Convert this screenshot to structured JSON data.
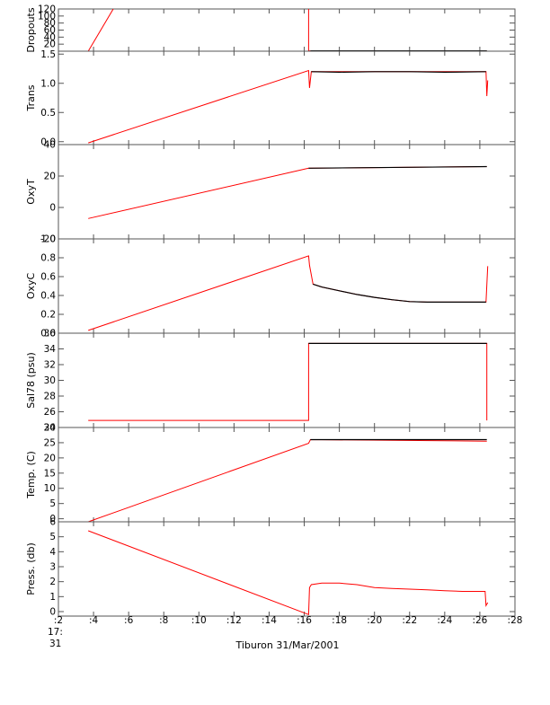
{
  "chart_data": {
    "type": "line",
    "xlabel": "Tiburon 31/Mar/2001",
    "x_axis_note": [
      "17:",
      "31"
    ],
    "x_ticks": [
      2,
      4,
      6,
      8,
      10,
      12,
      14,
      16,
      18,
      20,
      22,
      24,
      26,
      28
    ],
    "x_tick_labels": [
      ":2",
      ":4",
      ":6",
      ":8",
      ":10",
      ":12",
      ":14",
      ":16",
      ":18",
      ":20",
      ":22",
      ":24",
      ":26",
      ":28"
    ],
    "xlim": [
      2,
      28
    ],
    "colors": {
      "raw": "#ff0000",
      "processed": "#000000"
    },
    "panels": [
      {
        "ylabel": "Dropouts",
        "ylim": [
          0,
          120
        ],
        "y_ticks": [
          20,
          40,
          60,
          80,
          100,
          120
        ],
        "y_tick_labels": [
          "20",
          "40",
          "60",
          "80",
          "100",
          "120"
        ],
        "series": [
          {
            "role": "raw",
            "x": [
              3.7,
              5.6
            ],
            "y": [
              0,
              160
            ]
          },
          {
            "role": "raw",
            "x": [
              16.25,
              16.25,
              16.35,
              26.4
            ],
            "y": [
              125,
              1,
              1,
              1
            ]
          },
          {
            "role": "processed",
            "x": [
              16.35,
              26.4
            ],
            "y": [
              1,
              1
            ]
          }
        ]
      },
      {
        "ylabel": "Trans",
        "ylim": [
          -0.05,
          1.55
        ],
        "y_ticks": [
          0.0,
          0.5,
          1.0,
          1.5
        ],
        "y_tick_labels": [
          "0.0",
          "0.5",
          "1.0",
          "1.5"
        ],
        "series": [
          {
            "role": "raw",
            "x": [
              3.7,
              16.25,
              16.3,
              16.4,
              26.35,
              26.4,
              26.45
            ],
            "y": [
              -0.02,
              1.22,
              0.92,
              1.2,
              1.2,
              0.78,
              1.05
            ]
          },
          {
            "role": "processed",
            "x": [
              16.4,
              18,
              20,
              22,
              24,
              26.35
            ],
            "y": [
              1.2,
              1.19,
              1.2,
              1.2,
              1.19,
              1.2
            ]
          }
        ]
      },
      {
        "ylabel": "OxyT",
        "ylim": [
          -20,
          40
        ],
        "y_ticks": [
          -20,
          0,
          20,
          40
        ],
        "y_tick_labels": [
          "-20",
          "0",
          "20",
          "40"
        ],
        "series": [
          {
            "role": "raw",
            "x": [
              3.7,
              16.25,
              26.4
            ],
            "y": [
              -7,
              25,
              26
            ]
          },
          {
            "role": "processed",
            "x": [
              16.25,
              26.4
            ],
            "y": [
              25,
              26
            ]
          }
        ]
      },
      {
        "ylabel": "OxyC",
        "ylim": [
          0.0,
          1.0
        ],
        "y_ticks": [
          0.0,
          0.2,
          0.4,
          0.6,
          0.8,
          1.0
        ],
        "y_tick_labels": [
          "0.0",
          "0.2",
          "0.4",
          "0.6",
          "0.8",
          "1.0"
        ],
        "series": [
          {
            "role": "raw",
            "x": [
              3.7,
              16.25,
              16.3,
              16.5,
              17,
              18,
              19,
              20,
              21,
              22,
              23,
              24,
              25,
              26.35,
              26.45
            ],
            "y": [
              0.03,
              0.82,
              0.72,
              0.52,
              0.49,
              0.45,
              0.41,
              0.38,
              0.355,
              0.335,
              0.33,
              0.33,
              0.33,
              0.33,
              0.71
            ]
          },
          {
            "role": "processed",
            "x": [
              16.5,
              17,
              18,
              19,
              20,
              21,
              22,
              23,
              24,
              25,
              26.35
            ],
            "y": [
              0.52,
              0.49,
              0.45,
              0.41,
              0.38,
              0.355,
              0.335,
              0.33,
              0.33,
              0.33,
              0.33
            ]
          }
        ]
      },
      {
        "ylabel": "Sal78 (psu)",
        "ylim": [
          24,
          36
        ],
        "y_ticks": [
          24,
          26,
          28,
          30,
          32,
          34,
          36
        ],
        "y_tick_labels": [
          "24",
          "26",
          "28",
          "30",
          "32",
          "34",
          "36"
        ],
        "series": [
          {
            "role": "raw",
            "x": [
              3.7,
              16.25,
              16.25,
              26.4,
              26.4
            ],
            "y": [
              24.9,
              24.9,
              34.7,
              34.7,
              24.9
            ]
          },
          {
            "role": "processed",
            "x": [
              16.25,
              26.4
            ],
            "y": [
              34.7,
              34.7
            ]
          }
        ]
      },
      {
        "ylabel": "Temp. (C)",
        "ylim": [
          -1,
          30
        ],
        "y_ticks": [
          0,
          5,
          10,
          15,
          20,
          25,
          30
        ],
        "y_tick_labels": [
          "0",
          "5",
          "10",
          "15",
          "20",
          "25",
          "30"
        ],
        "series": [
          {
            "role": "raw",
            "x": [
              3.7,
              16.25,
              16.35,
              26.4
            ],
            "y": [
              -1,
              24.8,
              26,
              25.5
            ]
          },
          {
            "role": "processed",
            "x": [
              16.35,
              26.4
            ],
            "y": [
              26,
              26
            ]
          }
        ]
      },
      {
        "ylabel": "Press. (db)",
        "ylim": [
          -0.3,
          6
        ],
        "y_ticks": [
          0,
          1,
          2,
          3,
          4,
          5,
          6
        ],
        "y_tick_labels": [
          "0",
          "1",
          "2",
          "3",
          "4",
          "5",
          "6"
        ],
        "series": [
          {
            "role": "raw",
            "x": [
              3.7,
              16.25,
              16.3,
              16.4,
              17,
              18,
              19,
              20,
              21,
              22,
              23,
              24,
              25,
              26.3,
              26.35,
              26.45
            ],
            "y": [
              5.4,
              -0.2,
              1.6,
              1.8,
              1.9,
              1.9,
              1.8,
              1.6,
              1.55,
              1.5,
              1.45,
              1.4,
              1.35,
              1.35,
              0.4,
              0.6
            ]
          }
        ]
      }
    ]
  }
}
